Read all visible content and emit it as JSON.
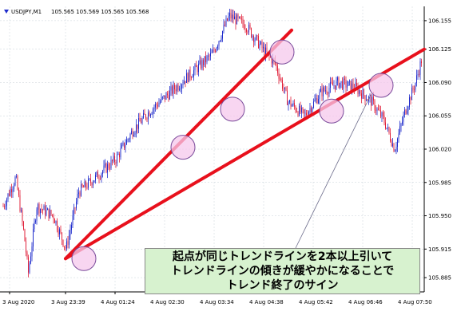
{
  "header": {
    "symbol": "USDJPY,M1",
    "ohlc": "105.565 105.569 105.565 105.568"
  },
  "annotation": {
    "lines": [
      "起点が同じトレンドラインを2本以上引いて",
      "トレンドラインの傾きが緩やかになることで",
      "トレンド終了のサイン"
    ]
  },
  "colors": {
    "trendline": "#e8101c",
    "circle_fill": "#f5c8ec",
    "circle_stroke": "#7a4a9a",
    "bull": "#1f2ccc",
    "bear": "#e0203a",
    "grid": "#c8d2d8",
    "annotation_bg": "#d7f2cf"
  },
  "chart_data": {
    "type": "candlestick",
    "title": "USDJPY,M1 105.565 105.569 105.565 105.568",
    "ylim": [
      105.87,
      106.17
    ],
    "y_ticks": [
      "106.155",
      "106.125",
      "106.090",
      "106.055",
      "106.020",
      "105.985",
      "105.950",
      "105.915",
      "105.885"
    ],
    "x_ticks": [
      "3 Aug 2020",
      "3 Aug 23:39",
      "4 Aug 01:24",
      "4 Aug 02:30",
      "4 Aug 03:34",
      "4 Aug 04:38",
      "4 Aug 05:42",
      "4 Aug 06:46",
      "4 Aug 07:50"
    ],
    "price_path": [
      [
        0,
        105.96
      ],
      [
        0.03,
        105.99
      ],
      [
        0.05,
        105.93
      ],
      [
        0.06,
        105.89
      ],
      [
        0.08,
        105.96
      ],
      [
        0.12,
        105.95
      ],
      [
        0.15,
        105.915
      ],
      [
        0.18,
        105.975
      ],
      [
        0.22,
        105.99
      ],
      [
        0.27,
        106.01
      ],
      [
        0.31,
        106.04
      ],
      [
        0.35,
        106.06
      ],
      [
        0.4,
        106.08
      ],
      [
        0.45,
        106.1
      ],
      [
        0.5,
        106.12
      ],
      [
        0.54,
        106.16
      ],
      [
        0.58,
        106.15
      ],
      [
        0.62,
        106.125
      ],
      [
        0.65,
        106.11
      ],
      [
        0.68,
        106.07
      ],
      [
        0.72,
        106.055
      ],
      [
        0.76,
        106.08
      ],
      [
        0.8,
        106.09
      ],
      [
        0.84,
        106.085
      ],
      [
        0.88,
        106.07
      ],
      [
        0.91,
        106.05
      ],
      [
        0.935,
        106.02
      ],
      [
        0.96,
        106.06
      ],
      [
        0.985,
        106.09
      ],
      [
        1.0,
        106.115
      ]
    ],
    "trendlines": [
      {
        "from": [
          "3 Aug 23:39",
          105.905
        ],
        "to": [
          "4 Aug 04:38",
          106.145
        ]
      },
      {
        "from": [
          "3 Aug 23:39",
          105.905
        ],
        "to": [
          "4 Aug 07:50",
          106.125
        ]
      }
    ],
    "touch_points": [
      {
        "x": "3 Aug 23:39",
        "y": 105.905
      },
      {
        "x": "4 Aug 02:30",
        "y": 106.022
      },
      {
        "x": "4 Aug 03:34",
        "y": 106.062
      },
      {
        "x": "4 Aug 04:38",
        "y": 106.122
      },
      {
        "x": "4 Aug 05:42",
        "y": 106.06
      },
      {
        "x": "4 Aug 06:46",
        "y": 106.087
      }
    ]
  }
}
